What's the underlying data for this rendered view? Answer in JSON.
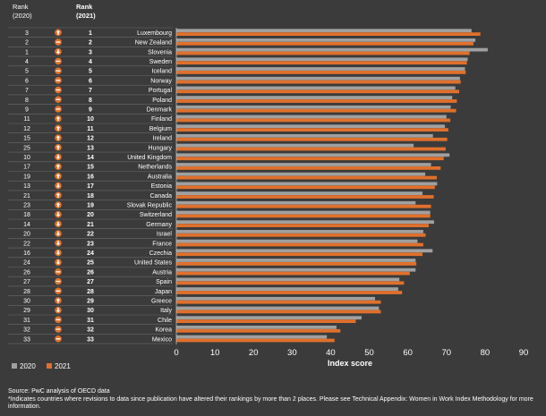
{
  "header": {
    "rank_2020_line1": "Rank",
    "rank_2020_line2": "(2020)",
    "rank_2021_line1": "Rank",
    "rank_2021_line2": "(2021)"
  },
  "legend": {
    "label_2020": "2020",
    "label_2021": "2021"
  },
  "footnote": {
    "source": "Source: PwC analysis of OECD data",
    "note": "*Indicates countries where revisions to data since publication have altered their rankings by more than 2 places. Please see Technical Appendix: Women in Work Index Methodology for more information."
  },
  "colors": {
    "bar_2020": "#a0a0a0",
    "bar_2021": "#e0702c",
    "icon": "#e0702c",
    "background": "#3b3b3b"
  },
  "chart_data": {
    "type": "bar",
    "orientation": "horizontal",
    "xlabel": "Index score",
    "xlim": [
      0,
      90
    ],
    "xticks": [
      0,
      10,
      20,
      30,
      40,
      50,
      60,
      70,
      80,
      90
    ],
    "series": [
      {
        "name": "2020",
        "color": "#a0a0a0"
      },
      {
        "name": "2021",
        "color": "#e0702c"
      }
    ],
    "rows": [
      {
        "country": "Luxembourg",
        "rank_2020": "3",
        "rank_2021": "1",
        "change": "up",
        "v2020": 76.5,
        "v2021": 78.8
      },
      {
        "country": "New Zealand",
        "rank_2020": "2",
        "rank_2021": "2",
        "change": "same",
        "v2020": 77.5,
        "v2021": 77.0
      },
      {
        "country": "Slovenia",
        "rank_2020": "1",
        "rank_2021": "3",
        "change": "down",
        "v2020": 80.7,
        "v2021": 76.0
      },
      {
        "country": "Sweden",
        "rank_2020": "4",
        "rank_2021": "4",
        "change": "same",
        "v2020": 75.5,
        "v2021": 75.3
      },
      {
        "country": "Iceland",
        "rank_2020": "5",
        "rank_2021": "5",
        "change": "same",
        "v2020": 74.8,
        "v2021": 75.0
      },
      {
        "country": "Norway",
        "rank_2020": "6",
        "rank_2021": "6",
        "change": "same",
        "v2020": 73.5,
        "v2021": 73.7
      },
      {
        "country": "Portugal",
        "rank_2020": "7",
        "rank_2021": "7",
        "change": "same",
        "v2020": 72.3,
        "v2021": 73.3
      },
      {
        "country": "Poland",
        "rank_2020": "8",
        "rank_2021": "8",
        "change": "same",
        "v2020": 71.5,
        "v2021": 72.7
      },
      {
        "country": "Denmark",
        "rank_2020": "9",
        "rank_2021": "9",
        "change": "same",
        "v2020": 71.1,
        "v2021": 72.5
      },
      {
        "country": "Finland",
        "rank_2020": "11",
        "rank_2021": "10",
        "change": "up",
        "v2020": 70.0,
        "v2021": 71.0
      },
      {
        "country": "Belgium",
        "rank_2020": "12",
        "rank_2021": "11",
        "change": "up",
        "v2020": 69.6,
        "v2021": 70.5
      },
      {
        "country": "Ireland",
        "rank_2020": "15",
        "rank_2021": "12",
        "change": "up",
        "v2020": 66.5,
        "v2021": 70.2
      },
      {
        "country": "Hungary",
        "rank_2020": "25",
        "rank_2021": "13",
        "change": "up",
        "v2020": 61.5,
        "v2021": 69.8
      },
      {
        "country": "United Kingdom",
        "rank_2020": "10",
        "rank_2021": "14",
        "change": "down",
        "v2020": 70.8,
        "v2021": 69.3
      },
      {
        "country": "Netherlands",
        "rank_2020": "17",
        "rank_2021": "15",
        "change": "up",
        "v2020": 66.0,
        "v2021": 68.5
      },
      {
        "country": "Australia",
        "rank_2020": "19",
        "rank_2021": "16",
        "change": "up",
        "v2020": 64.5,
        "v2021": 67.5
      },
      {
        "country": "Estonia",
        "rank_2020": "13",
        "rank_2021": "17",
        "change": "down",
        "v2020": 67.6,
        "v2021": 67.0
      },
      {
        "country": "Canada",
        "rank_2020": "21",
        "rank_2021": "18",
        "change": "up",
        "v2020": 63.8,
        "v2021": 66.7
      },
      {
        "country": "Slovak Republic",
        "rank_2020": "23",
        "rank_2021": "19",
        "change": "up",
        "v2020": 62.0,
        "v2021": 66.0
      },
      {
        "country": "Switzerland",
        "rank_2020": "18",
        "rank_2021": "20",
        "change": "down",
        "v2020": 65.8,
        "v2021": 65.8
      },
      {
        "country": "Germany",
        "rank_2020": "14",
        "rank_2021": "21",
        "change": "down",
        "v2020": 66.8,
        "v2021": 65.4
      },
      {
        "country": "Israel",
        "rank_2020": "20",
        "rank_2021": "22",
        "change": "down",
        "v2020": 64.0,
        "v2021": 64.6
      },
      {
        "country": "France",
        "rank_2020": "22",
        "rank_2021": "23",
        "change": "down",
        "v2020": 62.5,
        "v2021": 64.0
      },
      {
        "country": "Czechia",
        "rank_2020": "16",
        "rank_2021": "24",
        "change": "down",
        "v2020": 66.4,
        "v2021": 63.8
      },
      {
        "country": "United States",
        "rank_2020": "24",
        "rank_2021": "25",
        "change": "down",
        "v2020": 62.0,
        "v2021": 62.2
      },
      {
        "country": "Austria",
        "rank_2020": "26",
        "rank_2021": "26",
        "change": "same",
        "v2020": 62.0,
        "v2021": 60.5
      },
      {
        "country": "Spain",
        "rank_2020": "27",
        "rank_2021": "27",
        "change": "same",
        "v2020": 57.8,
        "v2021": 59.0
      },
      {
        "country": "Japan",
        "rank_2020": "28",
        "rank_2021": "28",
        "change": "same",
        "v2020": 57.5,
        "v2021": 58.5
      },
      {
        "country": "Greece",
        "rank_2020": "30",
        "rank_2021": "29",
        "change": "up",
        "v2020": 51.5,
        "v2021": 53.0
      },
      {
        "country": "Italy",
        "rank_2020": "29",
        "rank_2021": "30",
        "change": "down",
        "v2020": 52.5,
        "v2021": 53.0
      },
      {
        "country": "Chile",
        "rank_2020": "31",
        "rank_2021": "31",
        "change": "same",
        "v2020": 48.0,
        "v2021": 46.5
      },
      {
        "country": "Korea",
        "rank_2020": "32",
        "rank_2021": "32",
        "change": "same",
        "v2020": 41.5,
        "v2021": 42.5
      },
      {
        "country": "Mexico",
        "rank_2020": "33",
        "rank_2021": "33",
        "change": "same",
        "v2020": 39.0,
        "v2021": 41.0
      }
    ]
  }
}
